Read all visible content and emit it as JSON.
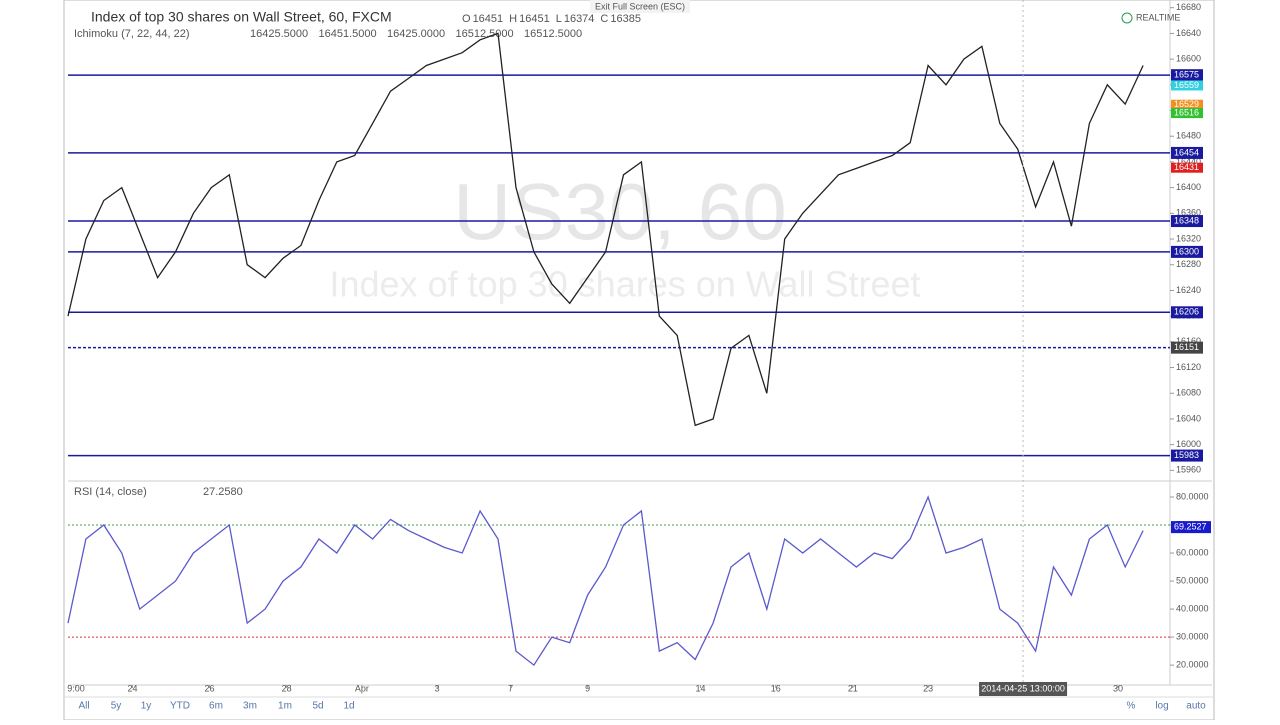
{
  "header": {
    "title": "Index of top 30 shares on Wall Street, 60, FXCM",
    "ohlc": [
      "O",
      "16451",
      "H",
      "16451",
      "L",
      "16374",
      "C",
      "16385"
    ],
    "indicator": "Ichimoku (7, 22, 44, 22)",
    "indicator_values": [
      "16425.5000",
      "16451.5000",
      "16425.0000",
      "16512.5000",
      "16512.5000"
    ],
    "indicator_colors": [
      "#2020a0",
      "#e8a040",
      "#30d0e0",
      "#40c040",
      "#d02020"
    ],
    "realtime": "REALTIME",
    "exit": "Exit Full Screen (ESC)",
    "watermark": "US30, 60",
    "watermark_sub": "Index of top 30 shares on Wall Street"
  },
  "chart_data": [
    {
      "type": "line",
      "ylim": [
        15945,
        16692
      ],
      "xlim": [
        0,
        61.5
      ],
      "yticks": [
        15960,
        16000,
        16040,
        16080,
        16120,
        16160,
        16200,
        16240,
        16280,
        16320,
        16360,
        16400,
        16440,
        16480,
        16520,
        16560,
        16600,
        16640,
        16680
      ],
      "series": [
        {
          "name": "close",
          "color": "#222222",
          "x": [
            0,
            1,
            2,
            3,
            4,
            5,
            6,
            7,
            8,
            9,
            10,
            11,
            12,
            13,
            14,
            15,
            16,
            17,
            18,
            19,
            20,
            21,
            22,
            23,
            24,
            25,
            26,
            27,
            28,
            29,
            30,
            31,
            32,
            33,
            34,
            35,
            36,
            37,
            38,
            39,
            40,
            41,
            42,
            43,
            44,
            45,
            46,
            47,
            48,
            49,
            50,
            51,
            52,
            53,
            54,
            55,
            56,
            57,
            58,
            59,
            60
          ],
          "values": [
            16200,
            16320,
            16380,
            16400,
            16330,
            16260,
            16300,
            16360,
            16400,
            16420,
            16280,
            16260,
            16290,
            16310,
            16380,
            16440,
            16450,
            16500,
            16550,
            16570,
            16590,
            16600,
            16610,
            16630,
            16640,
            16400,
            16300,
            16250,
            16220,
            16260,
            16300,
            16420,
            16440,
            16200,
            16170,
            16030,
            16040,
            16150,
            16170,
            16080,
            16320,
            16360,
            16390,
            16420,
            16430,
            16440,
            16450,
            16470,
            16590,
            16560,
            16600,
            16620,
            16500,
            16460,
            16370,
            16440,
            16340,
            16500,
            16560,
            16530,
            16590
          ]
        }
      ],
      "levels": [
        16575,
        16454,
        16348,
        16300,
        16206,
        15983
      ],
      "level_color": "#1a1aa0",
      "dashed_level": 16151,
      "price_tags": [
        {
          "value": 16559,
          "color": "#30d0e0"
        },
        {
          "value": 16529,
          "color": "#f09020"
        },
        {
          "value": 16516,
          "color": "#30c030"
        },
        {
          "value": 16431,
          "color": "#e02020"
        }
      ]
    },
    {
      "type": "line",
      "title": "RSI (14, close)",
      "last": "27.2580",
      "ylim": [
        12.9,
        85
      ],
      "xlim": [
        0,
        61.5
      ],
      "yticks": [
        {
          "value": 20,
          "label": "20.0000"
        },
        {
          "value": 30,
          "label": "30.0000"
        },
        {
          "value": 40,
          "label": "40.0000"
        },
        {
          "value": 50,
          "label": "50.0000"
        },
        {
          "value": 60,
          "label": "60.0000"
        },
        {
          "value": 70,
          "label": "70.0000"
        },
        {
          "value": 80,
          "label": "80.0000"
        }
      ],
      "xticks": [
        {
          "value": 0.45,
          "label": "9:00"
        },
        {
          "value": 3.6,
          "label": "24"
        },
        {
          "value": 7.9,
          "label": "26"
        },
        {
          "value": 12.2,
          "label": "28"
        },
        {
          "value": 16.4,
          "label": "Apr"
        },
        {
          "value": 20.6,
          "label": "3"
        },
        {
          "value": 24.7,
          "label": "7"
        },
        {
          "value": 29,
          "label": "9"
        },
        {
          "value": 35.3,
          "label": "14"
        },
        {
          "value": 39.5,
          "label": "16"
        },
        {
          "value": 43.8,
          "label": "21"
        },
        {
          "value": 48,
          "label": "23"
        },
        {
          "value": 58.6,
          "label": "30"
        }
      ],
      "crosshair": {
        "value": 53.3,
        "label": "2014-04-25 13:00:00"
      },
      "series": [
        {
          "name": "RSI",
          "color": "#5a5acd",
          "x": [
            0,
            1,
            2,
            3,
            4,
            5,
            6,
            7,
            8,
            9,
            10,
            11,
            12,
            13,
            14,
            15,
            16,
            17,
            18,
            19,
            20,
            21,
            22,
            23,
            24,
            25,
            26,
            27,
            28,
            29,
            30,
            31,
            32,
            33,
            34,
            35,
            36,
            37,
            38,
            39,
            40,
            41,
            42,
            43,
            44,
            45,
            46,
            47,
            48,
            49,
            50,
            51,
            52,
            53,
            54,
            55,
            56,
            57,
            58,
            59,
            60
          ],
          "values": [
            35,
            65,
            70,
            60,
            40,
            45,
            50,
            60,
            65,
            70,
            35,
            40,
            50,
            55,
            65,
            60,
            70,
            65,
            72,
            68,
            65,
            62,
            60,
            75,
            65,
            25,
            20,
            30,
            28,
            45,
            55,
            70,
            75,
            25,
            28,
            22,
            35,
            55,
            60,
            40,
            65,
            60,
            65,
            60,
            55,
            60,
            58,
            65,
            80,
            60,
            62,
            65,
            40,
            35,
            25,
            55,
            45,
            65,
            70,
            55,
            68
          ]
        }
      ],
      "levels": [
        {
          "value": 70,
          "color": "#40a040"
        },
        {
          "value": 30,
          "color": "#d03030"
        }
      ],
      "value_tag": 69.2527
    }
  ],
  "toolbar": {
    "ranges": [
      "All",
      "5y",
      "1y",
      "YTD",
      "6m",
      "3m",
      "1m",
      "5d",
      "1d"
    ],
    "right": [
      "%",
      "log",
      "auto"
    ]
  }
}
